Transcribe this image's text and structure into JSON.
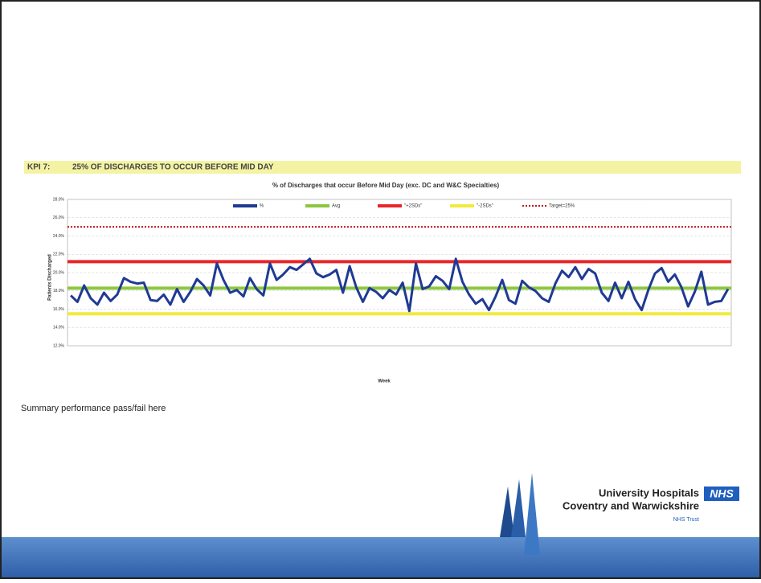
{
  "header": {
    "kpi": "KPI 7:",
    "title": "25% OF DISCHARGES TO OCCUR BEFORE MID DAY"
  },
  "chart_data": {
    "type": "line",
    "title": "% of Discharges that occur Before Mid Day (exc. DC and W&C Specialties)",
    "x_label": "Week",
    "y_label": "Patients Discharged",
    "categories": [
      null,
      null,
      null,
      null,
      null,
      null,
      null,
      null,
      null,
      null,
      null,
      null,
      null,
      null,
      null,
      null,
      null,
      null,
      null,
      null,
      null,
      null,
      null,
      null,
      null,
      null,
      null,
      null,
      null,
      null,
      null,
      null,
      null,
      null,
      null,
      null,
      null,
      null,
      null,
      null,
      null,
      null,
      null,
      null,
      null,
      null,
      null,
      null,
      null,
      null,
      null,
      null,
      null,
      null,
      null,
      null,
      null,
      null,
      null,
      null,
      null,
      null,
      null,
      null,
      null,
      null,
      null,
      null,
      null,
      null,
      null,
      null,
      null,
      null,
      null,
      null,
      null,
      null,
      null,
      null,
      null,
      null,
      null,
      null,
      null,
      null,
      null,
      null,
      null,
      null,
      null,
      null,
      null,
      null,
      null,
      null,
      null,
      null,
      null,
      null
    ],
    "series": [
      {
        "name": "%",
        "color": "#1f3a93",
        "values": [
          17.5,
          16.8,
          18.6,
          17.2,
          16.5,
          17.8,
          16.9,
          17.6,
          19.4,
          19.0,
          18.8,
          18.9,
          17.0,
          16.9,
          17.6,
          16.5,
          18.2,
          16.8,
          17.9,
          19.3,
          18.6,
          17.5,
          21.0,
          19.2,
          17.8,
          18.1,
          17.4,
          19.4,
          18.2,
          17.5,
          21.0,
          19.2,
          19.8,
          20.6,
          20.3,
          20.9,
          21.5,
          19.9,
          19.5,
          19.8,
          20.3,
          17.8,
          20.7,
          18.4,
          16.8,
          18.3,
          17.9,
          17.2,
          18.1,
          17.6,
          18.9,
          15.8,
          21.0,
          18.2,
          18.5,
          19.6,
          19.1,
          18.2,
          21.5,
          19.0,
          17.6,
          16.6,
          17.1,
          15.9,
          17.4,
          19.2,
          17.0,
          16.6,
          19.1,
          18.4,
          18.0,
          17.2,
          16.8,
          18.8,
          20.2,
          19.5,
          20.6,
          19.3,
          20.4,
          19.9,
          17.8,
          16.9,
          18.9,
          17.2,
          19.0,
          17.1,
          15.9,
          18.1,
          19.9,
          20.5,
          19.0,
          19.8,
          18.4,
          16.3,
          17.9,
          20.1,
          16.5,
          16.8,
          16.9,
          18.2
        ]
      },
      {
        "name": "Avg",
        "color": "#8cc63f",
        "value": 18.3
      },
      {
        "name": "\"+2SDs\"",
        "color": "#e8262a",
        "value": 21.2
      },
      {
        "name": "\"-2SDs\"",
        "color": "#f0ea3c",
        "value": 15.5
      },
      {
        "name": "Target=25%",
        "color": "#c4161c",
        "value": 25,
        "dashed": true
      }
    ],
    "ylim": [
      12,
      28
    ],
    "yticks": [
      {
        "value": 12,
        "label": "12.0%"
      },
      {
        "value": 14,
        "label": "14.0%"
      },
      {
        "value": 16,
        "label": "16.0%"
      },
      {
        "value": 18,
        "label": "18.0%"
      },
      {
        "value": 20,
        "label": "20.0%"
      },
      {
        "value": 22,
        "label": "22.0%"
      },
      {
        "value": 24,
        "label": "24.0%"
      },
      {
        "value": 26,
        "label": "26.0%"
      },
      {
        "value": 28,
        "label": "28.0%"
      }
    ],
    "grid": true
  },
  "summary": "Summary performance pass/fail here",
  "logo": {
    "line1": "University Hospitals",
    "line2": "Coventry and Warwickshire",
    "badge": "NHS",
    "trust": "NHS Trust"
  }
}
